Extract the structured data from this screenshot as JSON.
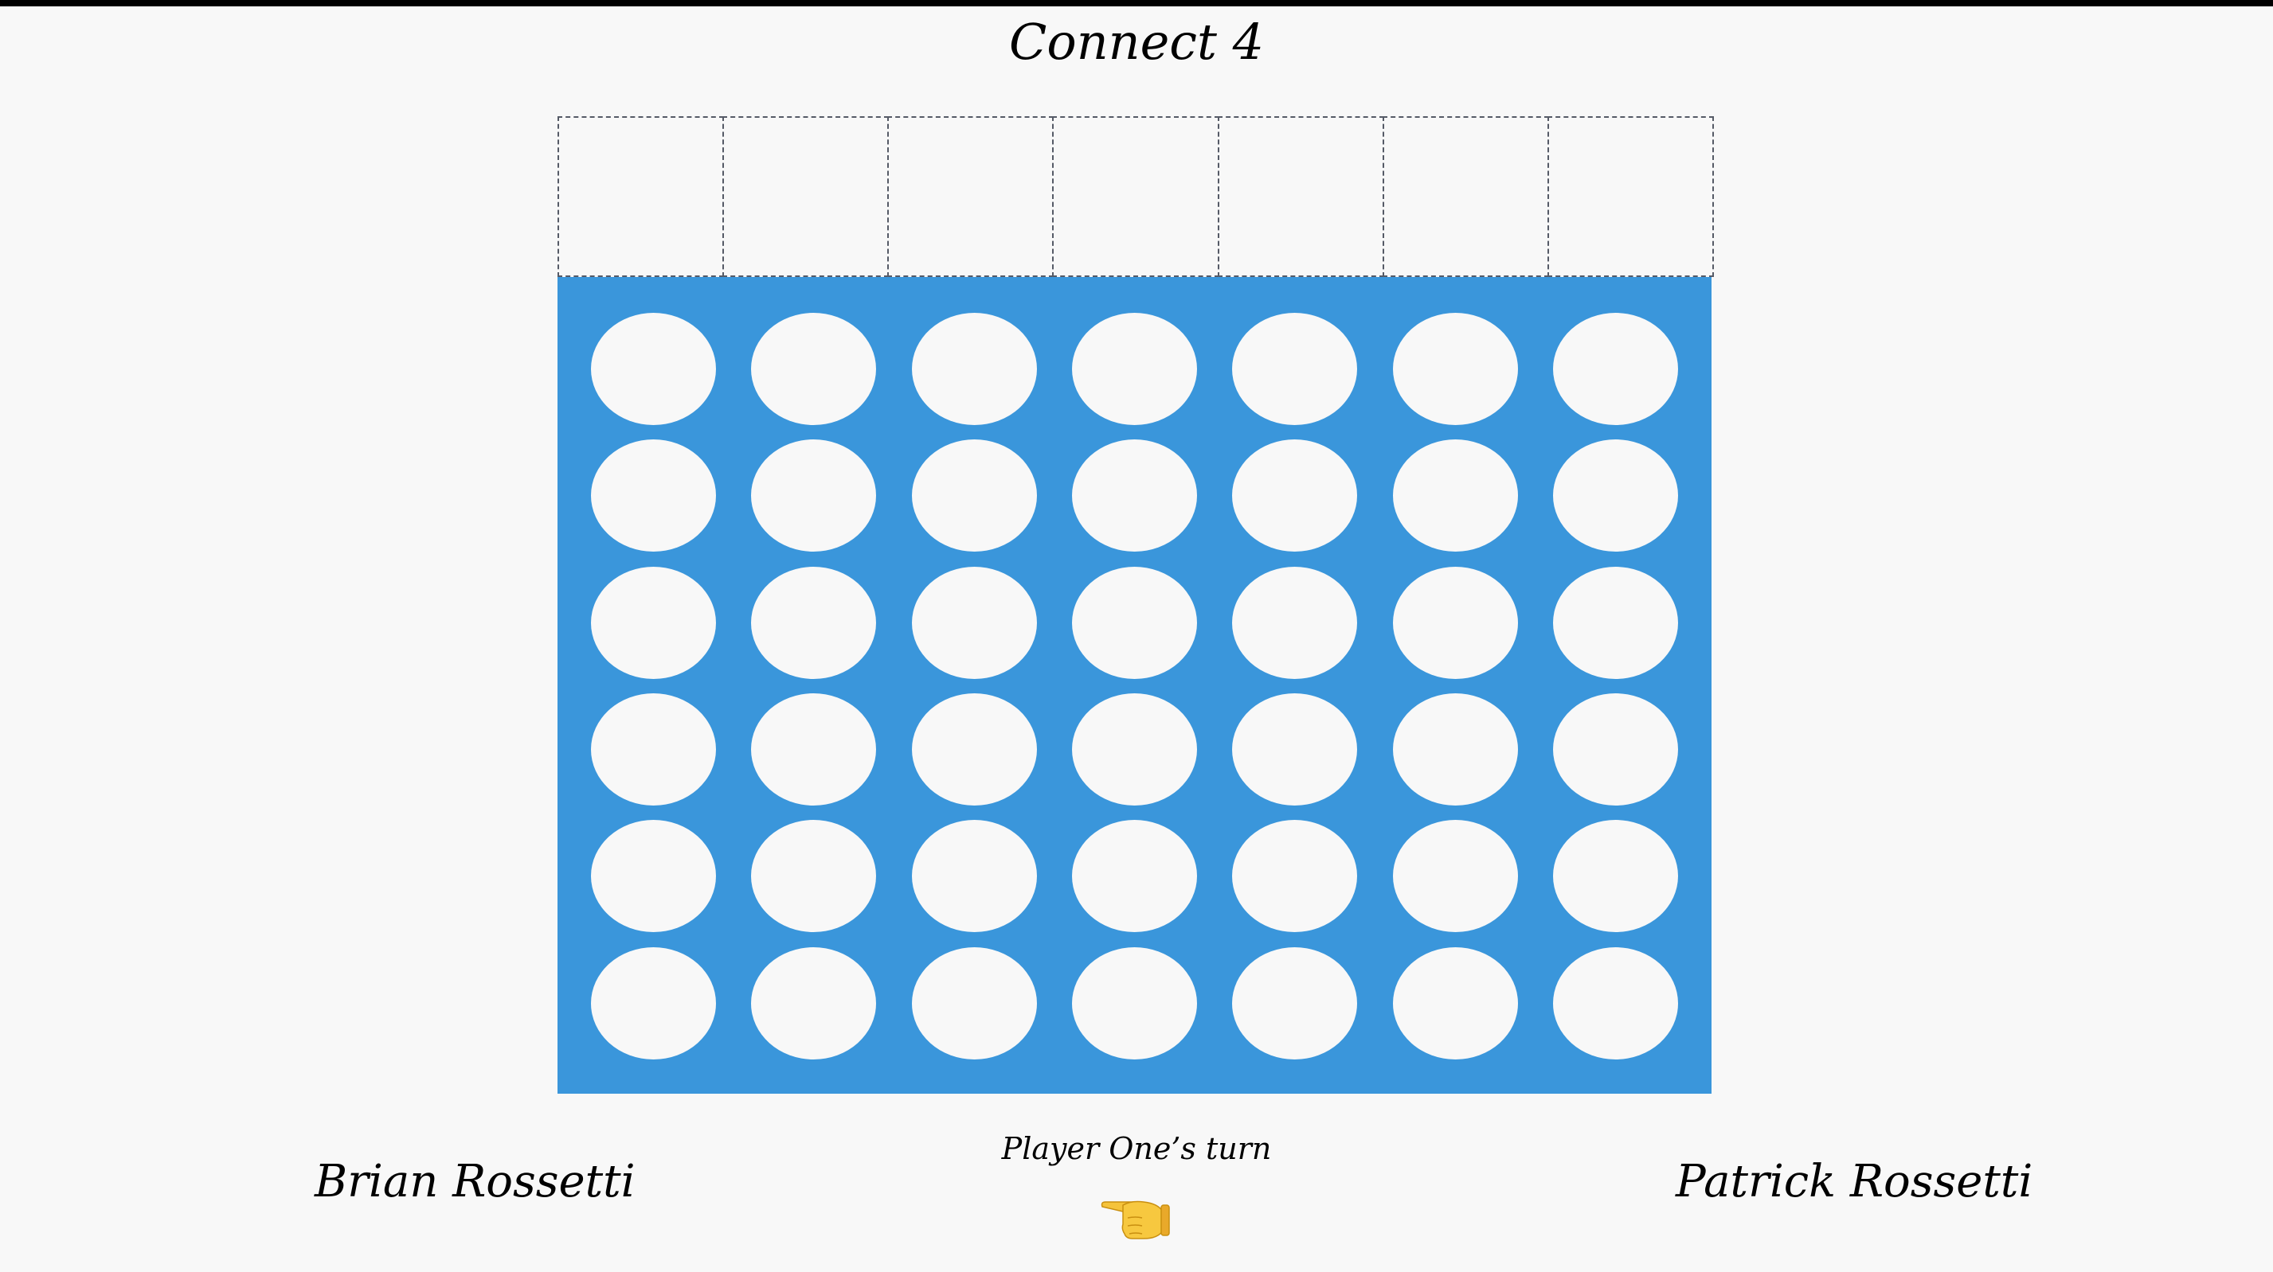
{
  "title": "Connect 4",
  "board": {
    "columns": 7,
    "rows": 6,
    "color": "#3a96db",
    "empty_color": "#f8f8f8"
  },
  "players": {
    "left": "Brian Rossetti",
    "right": "Patrick Rossetti"
  },
  "status": {
    "turn_text": "Player One’s turn",
    "pointer_icon": "pointing-left-hand-icon"
  }
}
